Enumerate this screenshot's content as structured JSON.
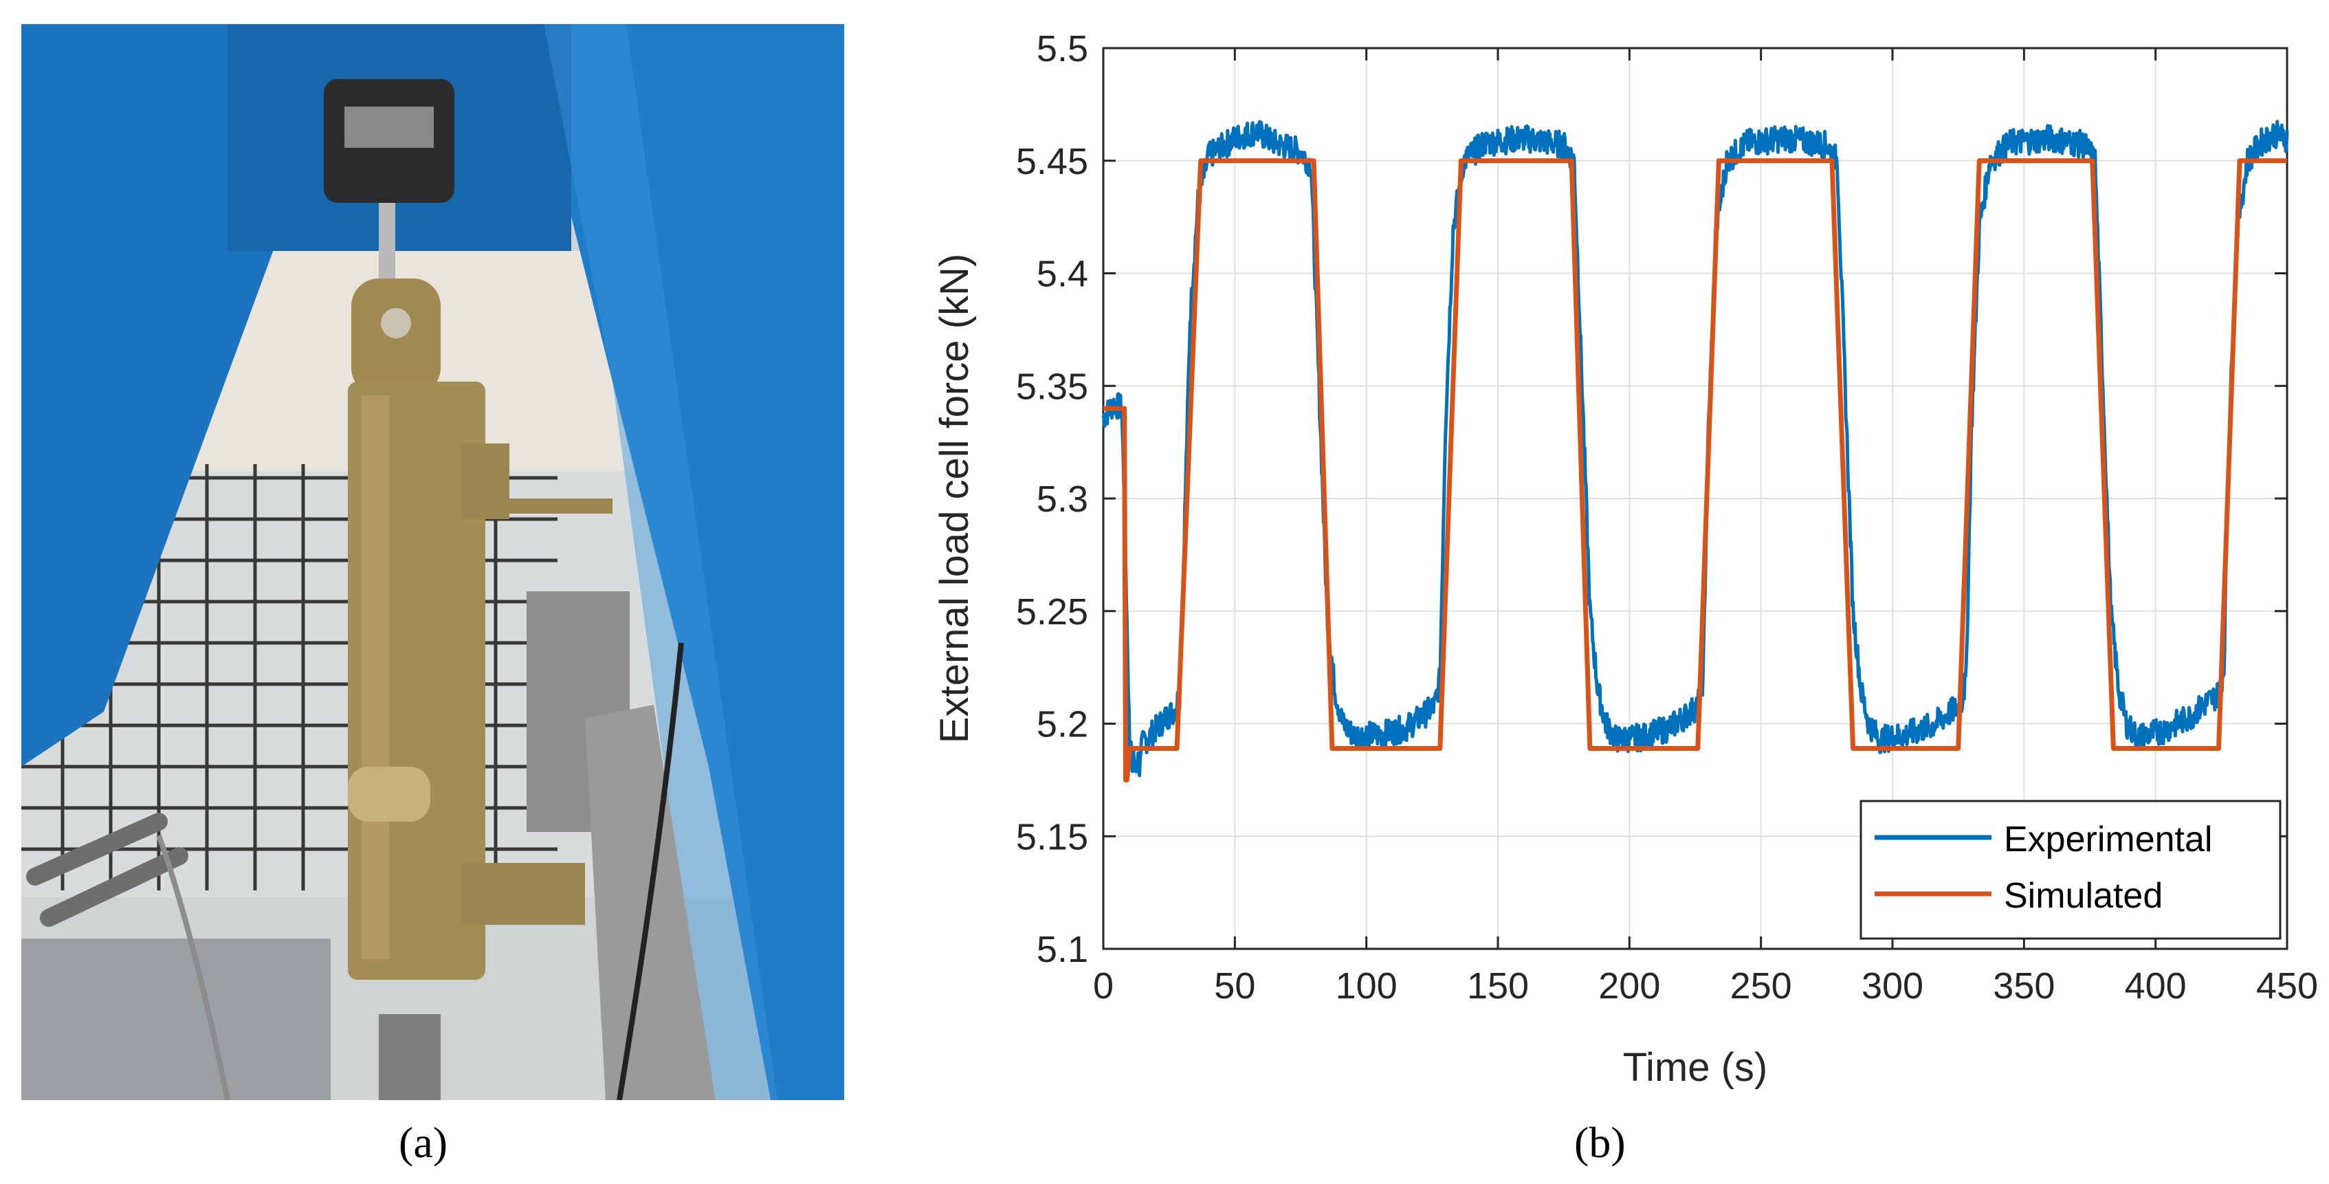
{
  "panels": {
    "a": {
      "caption": "(a)",
      "photo": "actuator-test-rig-photo"
    },
    "b": {
      "caption": "(b)"
    }
  },
  "colors": {
    "experimental": "#0072BD",
    "simulated": "#D95319",
    "grid": "#dfdfdf",
    "axis": "#262626",
    "rig_blue": "#1a78c2",
    "brass": "#a08a52"
  },
  "chart_data": {
    "type": "line",
    "title": "",
    "xlabel": "Time (s)",
    "ylabel": "External load cell force (kN)",
    "xlim": [
      0,
      450
    ],
    "ylim": [
      5.1,
      5.5
    ],
    "xticks": [
      0,
      50,
      100,
      150,
      200,
      250,
      300,
      350,
      400,
      450
    ],
    "yticks": [
      5.1,
      5.15,
      5.2,
      5.25,
      5.3,
      5.35,
      5.4,
      5.45,
      5.5
    ],
    "ytick_labels": [
      "5.1",
      "5.15",
      "5.2",
      "5.25",
      "5.3",
      "5.35",
      "5.4",
      "5.45",
      "5.5"
    ],
    "grid": true,
    "legend_position": "bottom-right",
    "series": [
      {
        "name": "Experimental",
        "x": [
          0,
          4,
          7,
          8,
          10,
          13,
          18,
          24,
          27,
          29,
          30,
          33,
          36,
          40,
          50,
          58,
          65,
          75,
          79,
          82,
          85,
          88,
          91,
          95,
          105,
          115,
          122,
          126,
          128,
          130,
          133,
          137,
          145,
          160,
          175,
          179,
          182,
          185,
          188,
          191,
          195,
          205,
          215,
          222,
          226,
          228,
          230,
          233,
          237,
          245,
          260,
          275,
          279,
          282,
          285,
          288,
          291,
          295,
          305,
          315,
          322,
          326,
          328,
          330,
          333,
          337,
          345,
          360,
          373,
          377,
          380,
          383,
          386,
          389,
          393,
          403,
          413,
          420,
          424,
          426,
          428,
          431,
          435,
          440,
          445,
          450
        ],
        "y": [
          5.336,
          5.342,
          5.34,
          5.3,
          5.19,
          5.188,
          5.195,
          5.203,
          5.206,
          5.213,
          5.25,
          5.38,
          5.432,
          5.452,
          5.46,
          5.463,
          5.458,
          5.454,
          5.448,
          5.35,
          5.25,
          5.215,
          5.2,
          5.195,
          5.195,
          5.198,
          5.204,
          5.208,
          5.22,
          5.33,
          5.42,
          5.45,
          5.458,
          5.46,
          5.457,
          5.45,
          5.35,
          5.25,
          5.215,
          5.2,
          5.193,
          5.194,
          5.198,
          5.204,
          5.208,
          5.22,
          5.33,
          5.42,
          5.45,
          5.458,
          5.46,
          5.457,
          5.45,
          5.35,
          5.25,
          5.215,
          5.2,
          5.193,
          5.195,
          5.199,
          5.205,
          5.208,
          5.22,
          5.33,
          5.42,
          5.45,
          5.458,
          5.46,
          5.457,
          5.45,
          5.35,
          5.25,
          5.215,
          5.2,
          5.194,
          5.197,
          5.203,
          5.21,
          5.213,
          5.225,
          5.33,
          5.42,
          5.45,
          5.458,
          5.462,
          5.46
        ]
      },
      {
        "name": "Simulated",
        "x": [
          0,
          8,
          8.5,
          9,
          10,
          28,
          37,
          80,
          87,
          128,
          136,
          178,
          185,
          226,
          234,
          277,
          285,
          325,
          333,
          376,
          384,
          424,
          432,
          450
        ],
        "y": [
          5.34,
          5.34,
          5.175,
          5.175,
          5.189,
          5.189,
          5.45,
          5.45,
          5.189,
          5.189,
          5.45,
          5.45,
          5.189,
          5.189,
          5.45,
          5.45,
          5.189,
          5.189,
          5.45,
          5.45,
          5.189,
          5.189,
          5.45,
          5.45
        ]
      }
    ]
  }
}
